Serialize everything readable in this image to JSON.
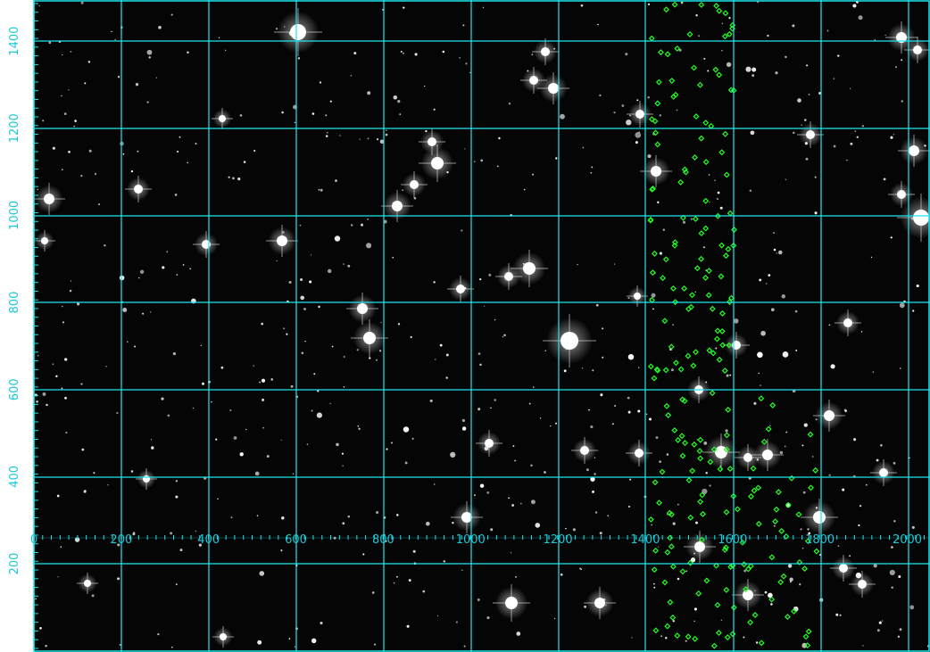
{
  "viewer": {
    "grid_color": "#1fe6ee",
    "marker_color": "#22ff22",
    "background_color": "#050505",
    "x_axis": {
      "labels": [
        "0",
        "200",
        "400",
        "600",
        "800",
        "1000",
        "1200",
        "1400",
        "1600",
        "1800",
        "2000"
      ],
      "values": [
        0,
        200,
        400,
        600,
        800,
        1000,
        1200,
        1400,
        1600,
        1800,
        2000
      ]
    },
    "y_axis": {
      "labels": [
        "1400",
        "1200",
        "1000",
        "800",
        "600",
        "400",
        "200"
      ],
      "values": [
        1400,
        1200,
        1000,
        800,
        600,
        400,
        200
      ]
    }
  }
}
